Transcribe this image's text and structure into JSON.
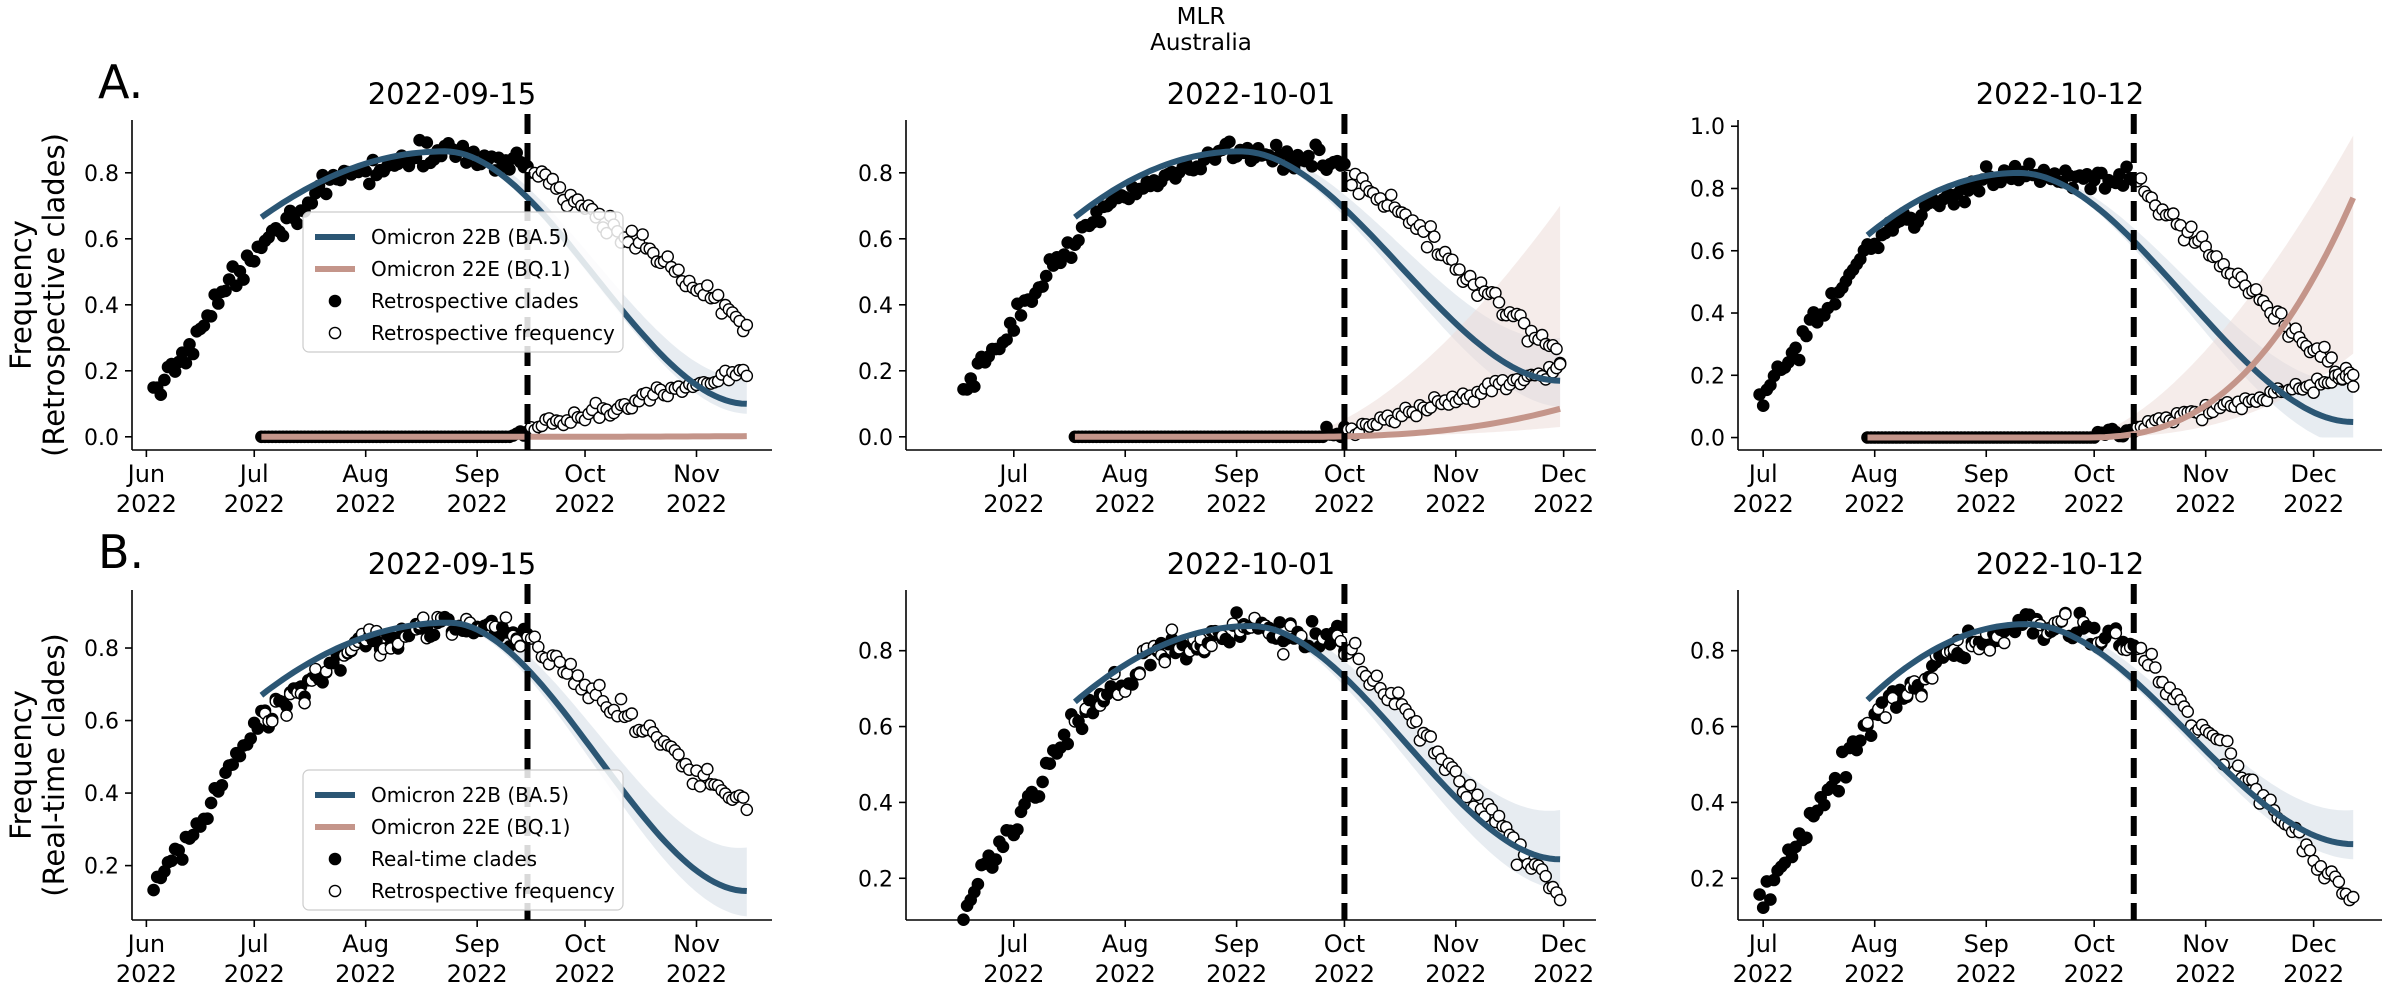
{
  "figure": {
    "title": "MLR",
    "subtitle": "Australia",
    "row_labels": [
      "A.",
      "B."
    ],
    "ylabels": [
      [
        "Frequency",
        "(Retrospective clades)"
      ],
      [
        "Frequency",
        "(Real-time clades)"
      ]
    ]
  },
  "colors": {
    "ba5": "#2b5674",
    "bq1": "#c4958a",
    "ba5_band": "#c9d5df",
    "bq1_band": "#ecdcd9",
    "forecast_line": "#000000"
  },
  "legend_rows": [
    {
      "entries": [
        {
          "label": "Omicron 22B (BA.5)",
          "kind": "line",
          "color": "#2b5674"
        },
        {
          "label": "Omicron 22E (BQ.1)",
          "kind": "line",
          "color": "#c4958a"
        },
        {
          "label": "Retrospective clades",
          "kind": "filled"
        },
        {
          "label": "Retrospective frequency",
          "kind": "open"
        }
      ]
    },
    {
      "entries": [
        {
          "label": "Omicron 22B (BA.5)",
          "kind": "line",
          "color": "#2b5674"
        },
        {
          "label": "Omicron 22E (BQ.1)",
          "kind": "line",
          "color": "#c4958a"
        },
        {
          "label": "Real-time clades",
          "kind": "filled"
        },
        {
          "label": "Retrospective frequency",
          "kind": "open"
        }
      ]
    }
  ],
  "chart_data": [
    {
      "type": "scatter",
      "row": 0,
      "col": 0,
      "title": "2022-09-15",
      "forecast_date": "2022-09-15",
      "x_range": [
        "2022-05-28",
        "2022-11-22"
      ],
      "ylim": [
        -0.04,
        0.96
      ],
      "yticks": [
        "0.0",
        "0.2",
        "0.4",
        "0.6",
        "0.8"
      ],
      "xticks": [
        {
          "date": "2022-06-01",
          "label": [
            "Jun",
            "2022"
          ]
        },
        {
          "date": "2022-07-01",
          "label": [
            "Jul",
            "2022"
          ]
        },
        {
          "date": "2022-08-01",
          "label": [
            "Aug",
            "2022"
          ]
        },
        {
          "date": "2022-09-01",
          "label": [
            "Sep",
            "2022"
          ]
        },
        {
          "date": "2022-10-01",
          "label": [
            "Oct",
            "2022"
          ]
        },
        {
          "date": "2022-11-01",
          "label": [
            "Nov",
            "2022"
          ]
        }
      ],
      "observed_start": "2022-06-03",
      "model_start": "2022-07-03",
      "model_end": "2022-11-15",
      "observed_end": "2022-11-15",
      "ba5_peak_date": "2022-08-23",
      "ba5_peak": 0.865,
      "ba5_end": 0.1,
      "ba5_band_end": 0.1,
      "ba5_obs_end": 0.35,
      "bq1_end": 0.002,
      "bq1_band_end": 0.002,
      "bq1_obs_end": 0.2,
      "bq1_obs_rise": "2022-09-10",
      "observed_series": "retrospective",
      "legend": true
    },
    {
      "type": "scatter",
      "row": 0,
      "col": 1,
      "title": "2022-10-01",
      "forecast_date": "2022-10-01",
      "x_range": [
        "2022-06-01",
        "2022-12-10"
      ],
      "ylim": [
        -0.04,
        0.96
      ],
      "yticks": [
        "0.0",
        "0.2",
        "0.4",
        "0.6",
        "0.8"
      ],
      "xticks": [
        {
          "date": "2022-07-01",
          "label": [
            "Jul",
            "2022"
          ]
        },
        {
          "date": "2022-08-01",
          "label": [
            "Aug",
            "2022"
          ]
        },
        {
          "date": "2022-09-01",
          "label": [
            "Sep",
            "2022"
          ]
        },
        {
          "date": "2022-10-01",
          "label": [
            "Oct",
            "2022"
          ]
        },
        {
          "date": "2022-11-01",
          "label": [
            "Nov",
            "2022"
          ]
        },
        {
          "date": "2022-12-01",
          "label": [
            "Dec",
            "2022"
          ]
        }
      ],
      "observed_start": "2022-06-17",
      "model_start": "2022-07-18",
      "model_end": "2022-11-30",
      "observed_end": "2022-11-30",
      "ba5_peak_date": "2022-09-02",
      "ba5_peak": 0.865,
      "ba5_end": 0.17,
      "ba5_band_end": 0.12,
      "ba5_obs_end": 0.24,
      "bq1_end": 0.085,
      "bq1_band_end": 0.7,
      "bq1_obs_end": 0.21,
      "bq1_obs_rise": "2022-09-25",
      "observed_series": "retrospective",
      "legend": false
    },
    {
      "type": "scatter",
      "row": 0,
      "col": 2,
      "title": "2022-10-12",
      "forecast_date": "2022-10-12",
      "x_range": [
        "2022-06-24",
        "2022-12-20"
      ],
      "ylim": [
        -0.04,
        1.02
      ],
      "yticks": [
        "0.0",
        "0.2",
        "0.4",
        "0.6",
        "0.8",
        "1.0"
      ],
      "xticks": [
        {
          "date": "2022-07-01",
          "label": [
            "Jul",
            "2022"
          ]
        },
        {
          "date": "2022-08-01",
          "label": [
            "Aug",
            "2022"
          ]
        },
        {
          "date": "2022-09-01",
          "label": [
            "Sep",
            "2022"
          ]
        },
        {
          "date": "2022-10-01",
          "label": [
            "Oct",
            "2022"
          ]
        },
        {
          "date": "2022-11-01",
          "label": [
            "Nov",
            "2022"
          ]
        },
        {
          "date": "2022-12-01",
          "label": [
            "Dec",
            "2022"
          ]
        }
      ],
      "observed_start": "2022-06-30",
      "model_start": "2022-07-30",
      "model_end": "2022-12-12",
      "observed_end": "2022-12-12",
      "ba5_peak_date": "2022-09-10",
      "ba5_peak": 0.85,
      "ba5_end": 0.05,
      "ba5_band_end": 0.1,
      "ba5_obs_end": 0.17,
      "bq1_end": 0.77,
      "bq1_band_end": 0.97,
      "bq1_obs_end": 0.2,
      "bq1_obs_rise": "2022-10-01",
      "observed_series": "retrospective",
      "legend": false
    },
    {
      "type": "scatter",
      "row": 1,
      "col": 0,
      "title": "2022-09-15",
      "forecast_date": "2022-09-15",
      "x_range": [
        "2022-05-28",
        "2022-11-22"
      ],
      "ylim": [
        0.05,
        0.96
      ],
      "yticks": [
        "0.2",
        "0.4",
        "0.6",
        "0.8"
      ],
      "xticks": [
        {
          "date": "2022-06-01",
          "label": [
            "Jun",
            "2022"
          ]
        },
        {
          "date": "2022-07-01",
          "label": [
            "Jul",
            "2022"
          ]
        },
        {
          "date": "2022-08-01",
          "label": [
            "Aug",
            "2022"
          ]
        },
        {
          "date": "2022-09-01",
          "label": [
            "Sep",
            "2022"
          ]
        },
        {
          "date": "2022-10-01",
          "label": [
            "Oct",
            "2022"
          ]
        },
        {
          "date": "2022-11-01",
          "label": [
            "Nov",
            "2022"
          ]
        }
      ],
      "observed_start": "2022-06-03",
      "model_start": "2022-07-03",
      "model_end": "2022-11-15",
      "observed_end": "2022-11-15",
      "ba5_peak_date": "2022-08-24",
      "ba5_peak": 0.87,
      "ba5_end": 0.13,
      "ba5_band_end": 0.17,
      "ba5_obs_end": 0.35,
      "observed_series": "realtime",
      "legend": true
    },
    {
      "type": "scatter",
      "row": 1,
      "col": 1,
      "title": "2022-10-01",
      "forecast_date": "2022-10-01",
      "x_range": [
        "2022-06-01",
        "2022-12-10"
      ],
      "ylim": [
        0.09,
        0.96
      ],
      "yticks": [
        "0.2",
        "0.4",
        "0.6",
        "0.8"
      ],
      "xticks": [
        {
          "date": "2022-07-01",
          "label": [
            "Jul",
            "2022"
          ]
        },
        {
          "date": "2022-08-01",
          "label": [
            "Aug",
            "2022"
          ]
        },
        {
          "date": "2022-09-01",
          "label": [
            "Sep",
            "2022"
          ]
        },
        {
          "date": "2022-10-01",
          "label": [
            "Oct",
            "2022"
          ]
        },
        {
          "date": "2022-11-01",
          "label": [
            "Nov",
            "2022"
          ]
        },
        {
          "date": "2022-12-01",
          "label": [
            "Dec",
            "2022"
          ]
        }
      ],
      "observed_start": "2022-06-17",
      "model_start": "2022-07-18",
      "model_end": "2022-11-30",
      "observed_end": "2022-11-30",
      "ba5_peak_date": "2022-09-05",
      "ba5_peak": 0.865,
      "ba5_end": 0.25,
      "ba5_band_end": 0.2,
      "ba5_obs_end": 0.15,
      "observed_series": "realtime",
      "legend": false
    },
    {
      "type": "scatter",
      "row": 1,
      "col": 2,
      "title": "2022-10-12",
      "forecast_date": "2022-10-12",
      "x_range": [
        "2022-06-24",
        "2022-12-20"
      ],
      "ylim": [
        0.09,
        0.96
      ],
      "yticks": [
        "0.2",
        "0.4",
        "0.6",
        "0.8"
      ],
      "xticks": [
        {
          "date": "2022-07-01",
          "label": [
            "Jul",
            "2022"
          ]
        },
        {
          "date": "2022-08-01",
          "label": [
            "Aug",
            "2022"
          ]
        },
        {
          "date": "2022-09-01",
          "label": [
            "Sep",
            "2022"
          ]
        },
        {
          "date": "2022-10-01",
          "label": [
            "Oct",
            "2022"
          ]
        },
        {
          "date": "2022-11-01",
          "label": [
            "Nov",
            "2022"
          ]
        },
        {
          "date": "2022-12-01",
          "label": [
            "Dec",
            "2022"
          ]
        }
      ],
      "observed_start": "2022-06-30",
      "model_start": "2022-07-30",
      "model_end": "2022-12-12",
      "observed_end": "2022-12-12",
      "ba5_peak_date": "2022-09-12",
      "ba5_peak": 0.87,
      "ba5_end": 0.29,
      "ba5_band_end": 0.3,
      "ba5_obs_end": 0.13,
      "observed_series": "realtime",
      "legend": false
    }
  ]
}
